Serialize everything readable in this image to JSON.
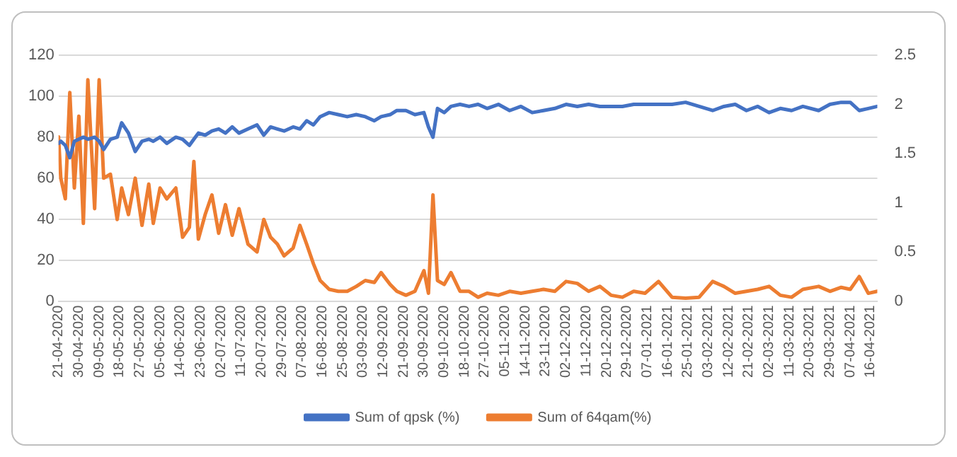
{
  "chart_data": {
    "type": "line",
    "legend": "bottom",
    "grid": "y",
    "marker": "none",
    "line_style": "solid",
    "x": [
      "2020-04-21",
      "2020-04-22",
      "2020-04-24",
      "2020-04-26",
      "2020-04-28",
      "2020-04-30",
      "2020-05-02",
      "2020-05-04",
      "2020-05-07",
      "2020-05-09",
      "2020-05-11",
      "2020-05-14",
      "2020-05-17",
      "2020-05-19",
      "2020-05-22",
      "2020-05-25",
      "2020-05-28",
      "2020-05-31",
      "2020-06-02",
      "2020-06-05",
      "2020-06-08",
      "2020-06-12",
      "2020-06-15",
      "2020-06-18",
      "2020-06-20",
      "2020-06-22",
      "2020-06-25",
      "2020-06-28",
      "2020-07-01",
      "2020-07-04",
      "2020-07-07",
      "2020-07-10",
      "2020-07-14",
      "2020-07-18",
      "2020-07-21",
      "2020-07-24",
      "2020-07-27",
      "2020-07-30",
      "2020-08-03",
      "2020-08-06",
      "2020-08-09",
      "2020-08-12",
      "2020-08-15",
      "2020-08-19",
      "2020-08-23",
      "2020-08-27",
      "2020-08-31",
      "2020-09-04",
      "2020-09-08",
      "2020-09-11",
      "2020-09-15",
      "2020-09-18",
      "2020-09-22",
      "2020-09-26",
      "2020-09-30",
      "2020-10-02",
      "2020-10-04",
      "2020-10-06",
      "2020-10-09",
      "2020-10-12",
      "2020-10-16",
      "2020-10-20",
      "2020-10-24",
      "2020-10-28",
      "2020-11-02",
      "2020-11-07",
      "2020-11-12",
      "2020-11-17",
      "2020-11-22",
      "2020-11-27",
      "2020-12-02",
      "2020-12-07",
      "2020-12-12",
      "2020-12-17",
      "2020-12-22",
      "2020-12-27",
      "2021-01-01",
      "2021-01-06",
      "2021-01-12",
      "2021-01-18",
      "2021-01-24",
      "2021-01-30",
      "2021-02-05",
      "2021-02-10",
      "2021-02-15",
      "2021-02-20",
      "2021-02-25",
      "2021-03-02",
      "2021-03-07",
      "2021-03-12",
      "2021-03-17",
      "2021-03-24",
      "2021-03-29",
      "2021-04-03",
      "2021-04-07",
      "2021-04-11",
      "2021-04-15",
      "2021-04-19"
    ],
    "series": [
      {
        "name": "Sum of qpsk (%)",
        "color": "#4472c4",
        "values": [
          77,
          78,
          76,
          70,
          78,
          79,
          80,
          79,
          80,
          78,
          74,
          79,
          80,
          87,
          82,
          73,
          78,
          79,
          78,
          80,
          77,
          80,
          79,
          76,
          79,
          82,
          81,
          83,
          84,
          82,
          85,
          82,
          84,
          86,
          81,
          85,
          84,
          83,
          85,
          84,
          88,
          86,
          90,
          92,
          91,
          90,
          91,
          90,
          88,
          90,
          91,
          93,
          93,
          91,
          92,
          85,
          80,
          94,
          92,
          95,
          96,
          95,
          96,
          94,
          96,
          93,
          95,
          92,
          93,
          94,
          96,
          95,
          96,
          95,
          95,
          95,
          96,
          96,
          96,
          96,
          97,
          95,
          93,
          95,
          96,
          93,
          95,
          92,
          94,
          93,
          95,
          93,
          96,
          97,
          97,
          93,
          94,
          95
        ]
      },
      {
        "name": "Sum of 64qam(%)",
        "color": "#ed7d31",
        "axis": "y2",
        "values": [
          1.67,
          1.25,
          1.04,
          2.12,
          1.15,
          1.88,
          0.79,
          2.25,
          0.94,
          2.25,
          1.25,
          1.29,
          0.83,
          1.15,
          0.88,
          1.25,
          0.77,
          1.19,
          0.79,
          1.15,
          1.04,
          1.15,
          0.65,
          0.75,
          1.42,
          0.63,
          0.88,
          1.08,
          0.69,
          0.98,
          0.67,
          0.94,
          0.58,
          0.5,
          0.83,
          0.65,
          0.58,
          0.46,
          0.54,
          0.77,
          0.58,
          0.38,
          0.21,
          0.12,
          0.1,
          0.1,
          0.15,
          0.21,
          0.19,
          0.29,
          0.17,
          0.1,
          0.06,
          0.1,
          0.31,
          0.08,
          1.08,
          0.21,
          0.17,
          0.29,
          0.1,
          0.1,
          0.04,
          0.08,
          0.06,
          0.1,
          0.08,
          0.1,
          0.12,
          0.1,
          0.2,
          0.18,
          0.1,
          0.15,
          0.06,
          0.04,
          0.1,
          0.08,
          0.2,
          0.04,
          0.03,
          0.04,
          0.2,
          0.15,
          0.08,
          0.1,
          0.12,
          0.15,
          0.06,
          0.04,
          0.12,
          0.15,
          0.1,
          0.14,
          0.12,
          0.25,
          0.08,
          0.1
        ]
      }
    ],
    "xlim": [
      "2020-04-21",
      "2021-04-19"
    ],
    "xticks": [
      {
        "value": "2020-04-21",
        "label": "21-04-2020"
      },
      {
        "value": "2020-04-30",
        "label": "30-04-2020"
      },
      {
        "value": "2020-05-09",
        "label": "09-05-2020"
      },
      {
        "value": "2020-05-18",
        "label": "18-05-2020"
      },
      {
        "value": "2020-05-27",
        "label": "27-05-2020"
      },
      {
        "value": "2020-06-05",
        "label": "05-06-2020"
      },
      {
        "value": "2020-06-14",
        "label": "14-06-2020"
      },
      {
        "value": "2020-06-23",
        "label": "23-06-2020"
      },
      {
        "value": "2020-07-02",
        "label": "02-07-2020"
      },
      {
        "value": "2020-07-11",
        "label": "11-07-2020"
      },
      {
        "value": "2020-07-20",
        "label": "20-07-2020"
      },
      {
        "value": "2020-07-29",
        "label": "29-07-2020"
      },
      {
        "value": "2020-08-07",
        "label": "07-08-2020"
      },
      {
        "value": "2020-08-16",
        "label": "16-08-2020"
      },
      {
        "value": "2020-08-25",
        "label": "25-08-2020"
      },
      {
        "value": "2020-09-03",
        "label": "03-09-2020"
      },
      {
        "value": "2020-09-12",
        "label": "12-09-2020"
      },
      {
        "value": "2020-09-21",
        "label": "21-09-2020"
      },
      {
        "value": "2020-09-30",
        "label": "30-09-2020"
      },
      {
        "value": "2020-10-09",
        "label": "09-10-2020"
      },
      {
        "value": "2020-10-18",
        "label": "18-10-2020"
      },
      {
        "value": "2020-10-27",
        "label": "27-10-2020"
      },
      {
        "value": "2020-11-05",
        "label": "05-11-2020"
      },
      {
        "value": "2020-11-14",
        "label": "14-11-2020"
      },
      {
        "value": "2020-11-23",
        "label": "23-11-2020"
      },
      {
        "value": "2020-12-02",
        "label": "02-12-2020"
      },
      {
        "value": "2020-12-11",
        "label": "11-12-2020"
      },
      {
        "value": "2020-12-20",
        "label": "20-12-2020"
      },
      {
        "value": "2020-12-29",
        "label": "29-12-2020"
      },
      {
        "value": "2021-01-07",
        "label": "07-01-2021"
      },
      {
        "value": "2021-01-16",
        "label": "16-01-2021"
      },
      {
        "value": "2021-01-25",
        "label": "25-01-2021"
      },
      {
        "value": "2021-02-03",
        "label": "03-02-2021"
      },
      {
        "value": "2021-02-12",
        "label": "12-02-2021"
      },
      {
        "value": "2021-02-21",
        "label": "21-02-2021"
      },
      {
        "value": "2021-03-02",
        "label": "02-03-2021"
      },
      {
        "value": "2021-03-11",
        "label": "11-03-2021"
      },
      {
        "value": "2021-03-20",
        "label": "20-03-2021"
      },
      {
        "value": "2021-03-29",
        "label": "29-03-2021"
      },
      {
        "value": "2021-04-07",
        "label": "07-04-2021"
      },
      {
        "value": "2021-04-16",
        "label": "16-04-2021"
      }
    ],
    "ylim": [
      0,
      120
    ],
    "yticks": [
      0,
      20,
      40,
      60,
      80,
      100,
      120
    ],
    "y2lim": [
      0,
      2.5
    ],
    "y2ticks": [
      0,
      0.5,
      1,
      1.5,
      2,
      2.5
    ]
  }
}
